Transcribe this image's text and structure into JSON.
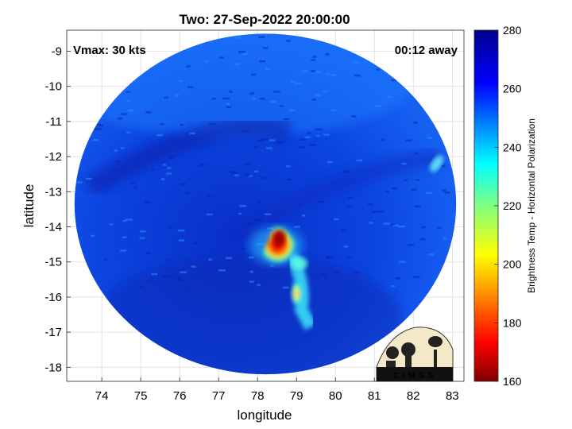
{
  "chart_data": {
    "type": "heatmap",
    "title": "Two: 27-Sep-2022 20:00:00",
    "xlabel": "longitude",
    "ylabel": "latitude",
    "xlim": [
      73.1,
      83.3
    ],
    "ylim": [
      -18.4,
      -8.4
    ],
    "xticks": [
      74,
      75,
      76,
      77,
      78,
      79,
      80,
      81,
      82,
      83
    ],
    "yticks": [
      -9,
      -10,
      -11,
      -12,
      -13,
      -14,
      -15,
      -16,
      -17,
      -18
    ],
    "grid": true,
    "annotations": {
      "left": "Vmax: 30 kts",
      "right": "00:12 away"
    },
    "colorbar": {
      "label": "Brightness Temp - Horizontal Polarization",
      "min": 160,
      "max": 280,
      "ticks": [
        160,
        180,
        200,
        220,
        240,
        260,
        280
      ],
      "colormap": [
        "#7f0000",
        "#ff0000",
        "#ff8000",
        "#ffff00",
        "#80ff80",
        "#00ffff",
        "#0080ff",
        "#0000ff",
        "#00008f"
      ]
    },
    "swath_extent": {
      "lon": [
        73.3,
        83.1
      ],
      "lat": [
        -18.2,
        -8.5
      ]
    },
    "background_brightness_temp": 262,
    "features": [
      {
        "name": "convective core",
        "lon": 78.6,
        "lat": -14.4,
        "min_brightness_temp": 168
      },
      {
        "name": "southern band",
        "lon": 79.0,
        "lat": -15.9,
        "min_brightness_temp": 195
      },
      {
        "name": "eastern patch",
        "lon": 82.6,
        "lat": -12.2,
        "min_brightness_temp": 240
      }
    ]
  },
  "logo": {
    "text": "CIMSS"
  }
}
